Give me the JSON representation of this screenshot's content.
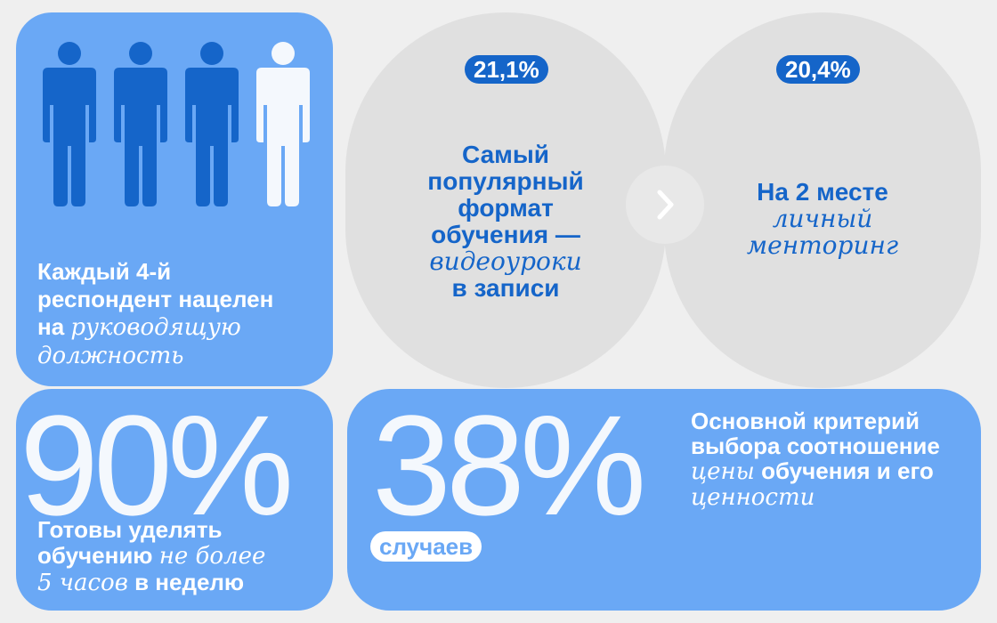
{
  "colors": {
    "card_blue": "#6aa8f5",
    "accent_blue": "#1565c9",
    "oval_gray": "#e0e0e0",
    "background": "#efefef"
  },
  "people_card": {
    "icon": "person-icon",
    "highlighted_share": "1 of 4",
    "caption_line1": "Каждый 4-й",
    "caption_line2": "респондент нацелен",
    "caption_line3_plain": "на",
    "caption_line3_italic": "руководящую",
    "caption_line4_italic": "должность"
  },
  "hours_card": {
    "value": "90%",
    "caption_line1": "Готовы уделять",
    "caption_line2_plain": "обучению",
    "caption_line2_italic": "не более",
    "caption_line3_italic": "5 часов",
    "caption_line3_plain": "в неделю"
  },
  "format_first": {
    "badge": "21,1%",
    "line1": "Самый",
    "line2": "популярный",
    "line3": "формат",
    "line4": "обучения —",
    "line5_italic": "видеоуроки",
    "line6": "в записи"
  },
  "format_second": {
    "badge": "20,4%",
    "line1": "На 2 месте",
    "line2_italic": "личный",
    "line3_italic": "менторинг"
  },
  "arrow": {
    "icon": "chevron-right-icon"
  },
  "criteria_card": {
    "value": "38%",
    "pill": "случаев",
    "line1": "Основной критерий",
    "line2": "выбора соотношение",
    "line3_italic": "цены",
    "line3_plain": "обучения и его",
    "line4_italic": "ценности"
  }
}
